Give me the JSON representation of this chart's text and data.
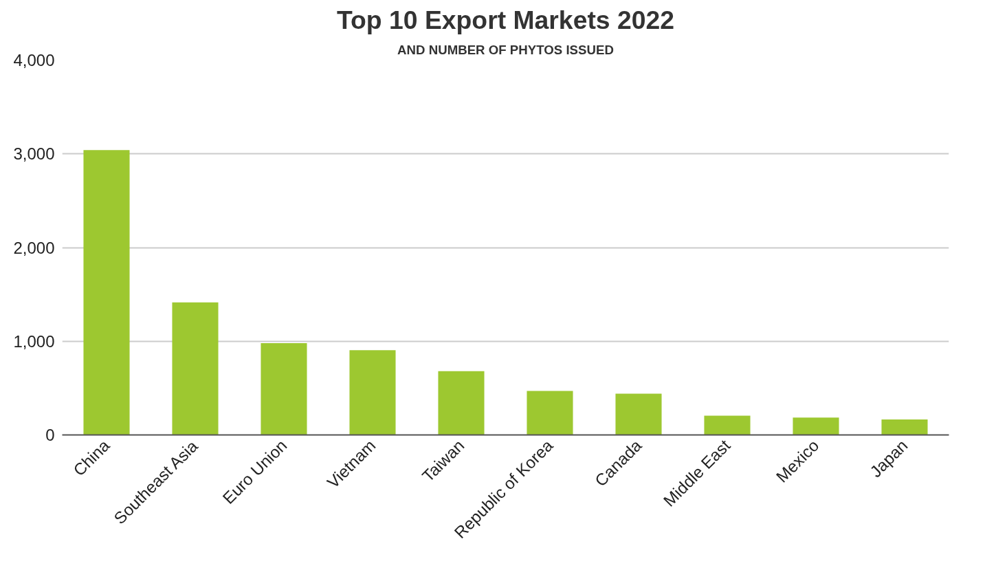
{
  "chart_data": {
    "type": "bar",
    "title": "Top 10 Export Markets 2022",
    "subtitle": "AND NUMBER OF PHYTOS ISSUED",
    "categories": [
      "China",
      "Southeast Asia",
      "Euro Union",
      "Vietnam",
      "Taiwan",
      "Republic of Korea",
      "Canada",
      "Middle East",
      "Mexico",
      "Japan"
    ],
    "values": [
      3040,
      1415,
      980,
      905,
      680,
      470,
      440,
      205,
      185,
      165
    ],
    "color": "#9dc830",
    "ylim": [
      0,
      4000
    ],
    "yticks": [
      {
        "value": 0,
        "label": "0"
      },
      {
        "value": 1000,
        "label": "1,000"
      },
      {
        "value": 2000,
        "label": "2,000"
      },
      {
        "value": 3000,
        "label": "3,000"
      },
      {
        "value": 4000,
        "label": "4,000"
      }
    ],
    "grid": "y"
  }
}
